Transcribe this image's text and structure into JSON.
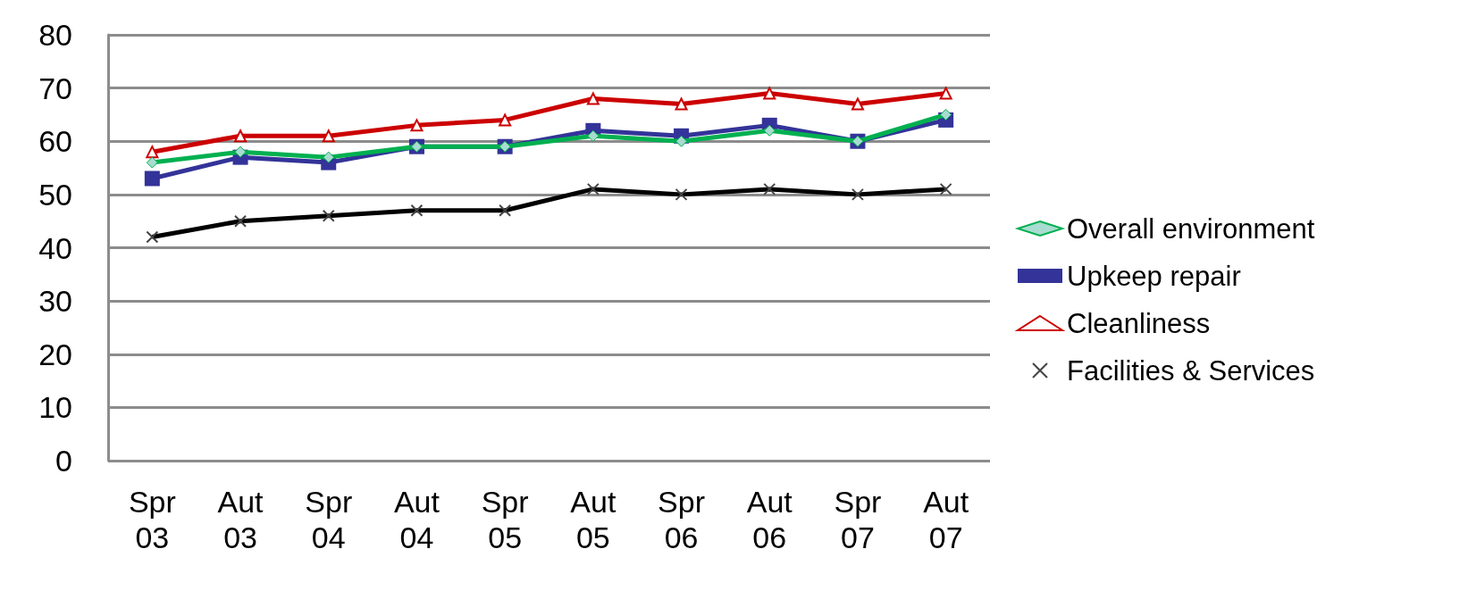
{
  "chart_data": {
    "type": "line",
    "categories": [
      "Spr\n03",
      "Aut\n03",
      "Spr\n04",
      "Aut\n04",
      "Spr\n05",
      "Aut\n05",
      "Spr\n06",
      "Aut\n06",
      "Spr\n07",
      "Aut\n07"
    ],
    "series": [
      {
        "name": "Overall environment",
        "color": "#00b050",
        "marker": "diamond",
        "values": [
          56,
          58,
          57,
          59,
          59,
          61,
          60,
          62,
          60,
          65
        ]
      },
      {
        "name": "Upkeep repair",
        "color": "#333399",
        "marker": "square",
        "values": [
          53,
          57,
          56,
          59,
          59,
          62,
          61,
          63,
          60,
          64
        ]
      },
      {
        "name": "Cleanliness",
        "color": "#cc0000",
        "marker": "triangle",
        "values": [
          58,
          61,
          61,
          63,
          64,
          68,
          67,
          69,
          67,
          69
        ]
      },
      {
        "name": "Facilities & Services",
        "color": "#000000",
        "marker": "cross",
        "values": [
          42,
          45,
          46,
          47,
          47,
          51,
          50,
          51,
          50,
          51
        ]
      }
    ],
    "ylim": [
      0,
      80
    ],
    "yticks": [
      0,
      10,
      20,
      30,
      40,
      50,
      60,
      70,
      80
    ],
    "grid": "y",
    "legend": "right",
    "line_style": "solid"
  }
}
